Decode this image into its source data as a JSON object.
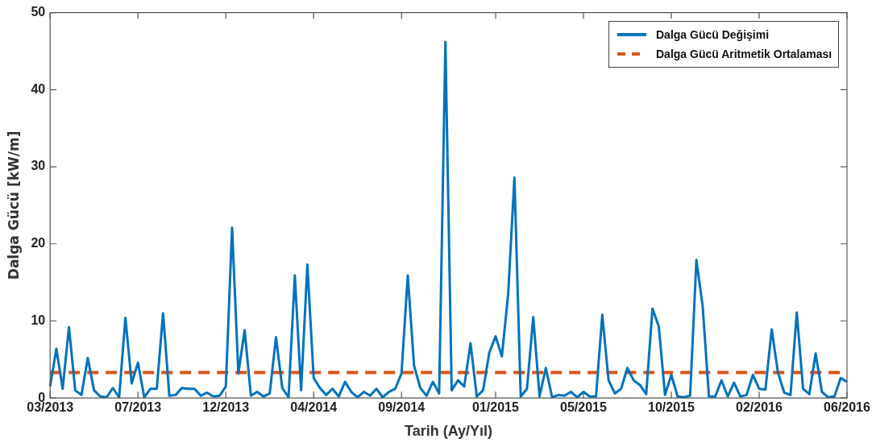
{
  "chart_data": {
    "type": "line",
    "xlabel": "Tarih (Ay/Yıl)",
    "ylabel": "Dalga Gücü [kW/m]",
    "categories": [
      "03/2013",
      null,
      null,
      null,
      null,
      null,
      null,
      null,
      null,
      null,
      null,
      null,
      null,
      null,
      "07/2013",
      null,
      null,
      null,
      null,
      null,
      null,
      null,
      null,
      null,
      null,
      null,
      null,
      null,
      "12/2013",
      null,
      null,
      null,
      null,
      null,
      null,
      null,
      null,
      null,
      null,
      null,
      null,
      null,
      "04/2014",
      null,
      null,
      null,
      null,
      null,
      null,
      null,
      null,
      null,
      null,
      null,
      null,
      null,
      "09/2014",
      null,
      null,
      null,
      null,
      null,
      null,
      null,
      null,
      null,
      null,
      null,
      null,
      null,
      null,
      "01/2015",
      null,
      null,
      null,
      null,
      null,
      null,
      null,
      null,
      null,
      null,
      null,
      null,
      null,
      "05/2015",
      null,
      null,
      null,
      null,
      null,
      null,
      null,
      null,
      null,
      null,
      null,
      null,
      null,
      "10/2015",
      null,
      null,
      null,
      null,
      null,
      null,
      null,
      null,
      null,
      null,
      null,
      null,
      null,
      "02/2016",
      null,
      null,
      null,
      null,
      null,
      null,
      null,
      null,
      null,
      null,
      null,
      null,
      null,
      "06/2016"
    ],
    "ylim": [
      0,
      50
    ],
    "yticks": [
      0,
      10,
      20,
      30,
      40,
      50
    ],
    "grid": false,
    "legend": "top right",
    "marker": "none",
    "series": [
      {
        "name": "Dalga Gücü Değişimi",
        "color": "#0072bd",
        "line_style": "solid",
        "values": [
          1.5,
          6.4,
          1.2,
          9.2,
          1.0,
          0.4,
          5.2,
          1.0,
          0.2,
          0.1,
          1.3,
          0.1,
          10.4,
          1.9,
          4.6,
          0.1,
          1.2,
          1.2,
          11.0,
          0.3,
          0.4,
          1.3,
          1.2,
          1.2,
          0.3,
          0.7,
          0.2,
          0.3,
          1.5,
          22.1,
          3.2,
          8.8,
          0.3,
          0.8,
          0.2,
          0.6,
          7.9,
          1.3,
          0.1,
          15.9,
          1.0,
          17.3,
          2.6,
          1.3,
          0.4,
          1.2,
          0.2,
          2.1,
          0.8,
          0.1,
          0.8,
          0.3,
          1.2,
          0.1,
          0.8,
          1.2,
          3.2,
          15.9,
          4.2,
          1.3,
          0.3,
          2.1,
          0.6,
          46.2,
          1.0,
          2.3,
          1.5,
          7.1,
          0.2,
          1.0,
          5.9,
          8.0,
          5.4,
          13.5,
          28.6,
          0.2,
          1.2,
          10.5,
          0.2,
          3.9,
          0.1,
          0.4,
          0.3,
          0.8,
          0.1,
          0.8,
          0.2,
          0.2,
          10.8,
          2.3,
          0.6,
          1.2,
          3.9,
          2.3,
          1.7,
          0.5,
          11.6,
          9.3,
          0.4,
          3.0,
          0.2,
          0.1,
          0.3,
          17.9,
          11.9,
          0.2,
          0.2,
          2.3,
          0.2,
          2.0,
          0.2,
          0.4,
          3.0,
          1.2,
          1.1,
          8.9,
          3.3,
          0.7,
          0.4,
          11.1,
          1.2,
          0.5,
          5.8,
          0.8,
          0.1,
          0.2,
          2.6,
          2.1
        ]
      },
      {
        "name": "Dalga Gücü Aritmetik Ortalaması",
        "color": "#d95319",
        "line_style": "dashed",
        "values": [
          3.3,
          3.3,
          3.3,
          3.3,
          3.3,
          3.3,
          3.3,
          3.3,
          3.3,
          3.3,
          3.3,
          3.3,
          3.3,
          3.3,
          3.3,
          3.3,
          3.3,
          3.3,
          3.3,
          3.3,
          3.3,
          3.3,
          3.3,
          3.3,
          3.3,
          3.3,
          3.3,
          3.3,
          3.3,
          3.3,
          3.3,
          3.3,
          3.3,
          3.3,
          3.3,
          3.3,
          3.3,
          3.3,
          3.3,
          3.3,
          3.3,
          3.3,
          3.3,
          3.3,
          3.3,
          3.3,
          3.3,
          3.3,
          3.3,
          3.3,
          3.3,
          3.3,
          3.3,
          3.3,
          3.3,
          3.3,
          3.3,
          3.3,
          3.3,
          3.3,
          3.3,
          3.3,
          3.3,
          3.3,
          3.3,
          3.3,
          3.3,
          3.3,
          3.3,
          3.3,
          3.3,
          3.3,
          3.3,
          3.3,
          3.3,
          3.3,
          3.3,
          3.3,
          3.3,
          3.3,
          3.3,
          3.3,
          3.3,
          3.3,
          3.3,
          3.3,
          3.3,
          3.3,
          3.3,
          3.3,
          3.3,
          3.3,
          3.3,
          3.3,
          3.3,
          3.3,
          3.3,
          3.3,
          3.3,
          3.3,
          3.3,
          3.3,
          3.3,
          3.3,
          3.3,
          3.3,
          3.3,
          3.3,
          3.3,
          3.3,
          3.3,
          3.3,
          3.3,
          3.3,
          3.3,
          3.3,
          3.3,
          3.3,
          3.3,
          3.3,
          3.3,
          3.3,
          3.3,
          3.3,
          3.3,
          3.3,
          3.3,
          3.3
        ]
      }
    ]
  }
}
